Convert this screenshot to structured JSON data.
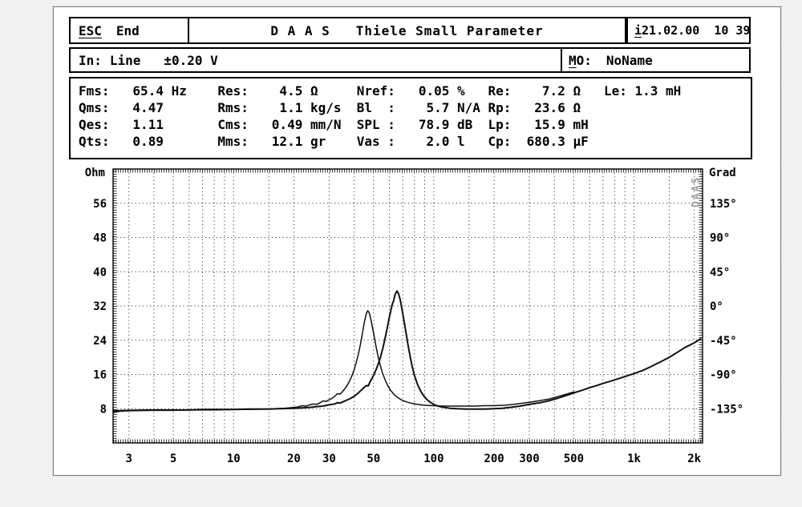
{
  "window": {
    "esc_key": "ESC",
    "esc_text": "End",
    "title": "D A A S   Thiele Small Parameter",
    "info_key": "i",
    "info_value": "21.02.00  10 39",
    "input_label": "In:",
    "input_value": "Line   ±0.20 V",
    "model_key": "M",
    "model_rest": "O:",
    "model_value": "NoName"
  },
  "parameters": {
    "rows": [
      [
        {
          "l": "Fms:",
          "v": "65.4 Hz"
        },
        {
          "l": "Res:",
          "v": " 4.5 Ω"
        },
        {
          "l": "Nref:",
          "v": "0.05 %"
        },
        {
          "l": "Re:",
          "v": "  7.2 Ω"
        },
        {
          "l": "Le:",
          "v": "1.3 mH"
        }
      ],
      [
        {
          "l": "Qms:",
          "v": "4.47"
        },
        {
          "l": "Rms:",
          "v": " 1.1 kg/s"
        },
        {
          "l": "Bl  :",
          "v": " 5.7 N/A"
        },
        {
          "l": "Rp:",
          "v": " 23.6 Ω"
        }
      ],
      [
        {
          "l": "Qes:",
          "v": "1.11"
        },
        {
          "l": "Cms:",
          "v": "0.49 mm/N"
        },
        {
          "l": "SPL :",
          "v": "78.9 dB"
        },
        {
          "l": "Lp:",
          "v": " 15.9 mH"
        }
      ],
      [
        {
          "l": "Qts:",
          "v": "0.89"
        },
        {
          "l": "Mms:",
          "v": "12.1 gr"
        },
        {
          "l": "Vas :",
          "v": " 2.0 l"
        },
        {
          "l": "Cp:",
          "v": "680.3 µF"
        }
      ]
    ]
  },
  "chart_data": {
    "type": "line",
    "title": "",
    "x_axis": {
      "scale": "log",
      "min": 2.5,
      "max": 2200,
      "tick_values": [
        3,
        5,
        10,
        20,
        30,
        50,
        100,
        200,
        300,
        500,
        1000,
        2000
      ],
      "tick_labels": [
        "3",
        "5",
        "10",
        "20",
        "30",
        "50",
        "100",
        "200",
        "300",
        "500",
        "1k",
        "2k"
      ],
      "gridlines": [
        3,
        4,
        5,
        6,
        7,
        8,
        9,
        10,
        15,
        20,
        30,
        40,
        50,
        60,
        70,
        80,
        90,
        100,
        150,
        200,
        300,
        400,
        500,
        600,
        700,
        800,
        900,
        1000,
        1500,
        2000
      ]
    },
    "y_left": {
      "title": "Ohm",
      "min": 0,
      "max": 64,
      "ticks": [
        56,
        48,
        40,
        32,
        24,
        16,
        8
      ]
    },
    "y_right": {
      "title": "Grad",
      "tick_labels": [
        "135°",
        "90°",
        "45°",
        "0°",
        "-45°",
        "-90°",
        "-135°"
      ],
      "tick_rows": [
        56,
        48,
        40,
        32,
        24,
        16,
        8
      ]
    },
    "watermark": "DAAS",
    "grid": "dotted",
    "legend_position": "none",
    "series": [
      {
        "name": "impedance-curve-main-65hz",
        "points": [
          [
            2.5,
            7.5
          ],
          [
            3,
            7.6
          ],
          [
            4,
            7.7
          ],
          [
            5,
            7.7
          ],
          [
            6,
            7.7
          ],
          [
            7,
            7.8
          ],
          [
            8,
            7.8
          ],
          [
            10,
            7.8
          ],
          [
            12,
            7.9
          ],
          [
            15,
            7.9
          ],
          [
            17,
            8.0
          ],
          [
            20,
            8.1
          ],
          [
            22,
            8.2
          ],
          [
            24,
            8.3
          ],
          [
            26,
            8.5
          ],
          [
            28,
            8.6
          ],
          [
            30,
            8.9
          ],
          [
            32,
            9.1
          ],
          [
            33,
            9.4
          ],
          [
            34,
            9.3
          ],
          [
            36,
            9.8
          ],
          [
            38,
            10.3
          ],
          [
            40,
            10.9
          ],
          [
            42,
            11.7
          ],
          [
            44,
            12.6
          ],
          [
            46,
            13.4
          ],
          [
            47,
            13.3
          ],
          [
            48,
            14.2
          ],
          [
            50,
            15.8
          ],
          [
            52,
            17.6
          ],
          [
            54,
            19.8
          ],
          [
            56,
            22.6
          ],
          [
            58,
            26.0
          ],
          [
            60,
            29.4
          ],
          [
            62,
            32.4
          ],
          [
            63,
            33.2
          ],
          [
            64,
            34.6
          ],
          [
            65.4,
            35.5
          ],
          [
            66.5,
            35.0
          ],
          [
            68,
            33.4
          ],
          [
            70,
            30.2
          ],
          [
            72,
            26.8
          ],
          [
            74,
            23.4
          ],
          [
            76,
            20.4
          ],
          [
            78,
            17.8
          ],
          [
            80,
            15.8
          ],
          [
            83,
            13.6
          ],
          [
            86,
            12.1
          ],
          [
            89,
            11.0
          ],
          [
            92,
            10.2
          ],
          [
            96,
            9.5
          ],
          [
            100,
            9.0
          ],
          [
            105,
            8.6
          ],
          [
            110,
            8.4
          ],
          [
            120,
            8.1
          ],
          [
            130,
            8.0
          ],
          [
            145,
            7.9
          ],
          [
            160,
            7.9
          ],
          [
            180,
            7.9
          ],
          [
            200,
            8.0
          ],
          [
            220,
            8.1
          ],
          [
            240,
            8.3
          ],
          [
            270,
            8.6
          ],
          [
            300,
            9.0
          ],
          [
            340,
            9.4
          ],
          [
            380,
            9.9
          ],
          [
            420,
            10.5
          ],
          [
            460,
            11.1
          ],
          [
            500,
            11.7
          ],
          [
            550,
            12.3
          ],
          [
            600,
            12.9
          ],
          [
            650,
            13.4
          ],
          [
            700,
            13.9
          ],
          [
            760,
            14.4
          ],
          [
            820,
            14.9
          ],
          [
            900,
            15.5
          ],
          [
            1000,
            16.2
          ],
          [
            1100,
            16.9
          ],
          [
            1200,
            17.7
          ],
          [
            1350,
            18.9
          ],
          [
            1500,
            20.0
          ],
          [
            1650,
            21.2
          ],
          [
            1800,
            22.3
          ],
          [
            2000,
            23.4
          ],
          [
            2150,
            24.3
          ]
        ]
      },
      {
        "name": "impedance-curve-second-46hz",
        "points": [
          [
            2.5,
            7.1
          ],
          [
            2.7,
            7.4
          ],
          [
            3,
            7.5
          ],
          [
            4,
            7.6
          ],
          [
            5,
            7.6
          ],
          [
            6,
            7.7
          ],
          [
            8,
            7.7
          ],
          [
            10,
            7.8
          ],
          [
            12,
            7.8
          ],
          [
            14,
            7.9
          ],
          [
            16,
            8.0
          ],
          [
            18,
            8.1
          ],
          [
            20,
            8.3
          ],
          [
            21,
            8.4
          ],
          [
            22,
            8.7
          ],
          [
            23,
            8.6
          ],
          [
            24,
            8.9
          ],
          [
            25,
            9.1
          ],
          [
            26,
            9.0
          ],
          [
            27,
            9.4
          ],
          [
            28,
            9.8
          ],
          [
            29,
            9.7
          ],
          [
            30,
            10.1
          ],
          [
            31,
            10.4
          ],
          [
            32,
            10.9
          ],
          [
            33,
            11.5
          ],
          [
            34,
            11.4
          ],
          [
            35,
            12.0
          ],
          [
            36,
            12.7
          ],
          [
            37,
            13.5
          ],
          [
            38,
            14.5
          ],
          [
            39,
            15.7
          ],
          [
            40,
            17.1
          ],
          [
            41,
            18.8
          ],
          [
            42,
            20.8
          ],
          [
            43,
            23.0
          ],
          [
            44,
            25.6
          ],
          [
            45,
            28.2
          ],
          [
            46,
            30.2
          ],
          [
            46.8,
            30.9
          ],
          [
            47.6,
            30.4
          ],
          [
            48.5,
            28.8
          ],
          [
            50,
            25.6
          ],
          [
            51.5,
            22.4
          ],
          [
            53,
            19.6
          ],
          [
            55,
            16.8
          ],
          [
            57,
            14.8
          ],
          [
            59,
            13.3
          ],
          [
            61,
            12.2
          ],
          [
            64,
            11.1
          ],
          [
            67,
            10.4
          ],
          [
            70,
            9.9
          ],
          [
            74,
            9.5
          ],
          [
            78,
            9.2
          ],
          [
            83,
            9.0
          ],
          [
            90,
            8.8
          ],
          [
            100,
            8.7
          ],
          [
            110,
            8.6
          ],
          [
            125,
            8.6
          ],
          [
            140,
            8.6
          ],
          [
            160,
            8.6
          ],
          [
            180,
            8.7
          ],
          [
            200,
            8.7
          ],
          [
            225,
            8.8
          ],
          [
            250,
            9.0
          ],
          [
            280,
            9.3
          ],
          [
            300,
            9.5
          ],
          [
            340,
            9.9
          ],
          [
            380,
            10.3
          ],
          [
            420,
            10.9
          ],
          [
            460,
            11.4
          ],
          [
            500,
            11.9
          ]
        ]
      }
    ]
  }
}
